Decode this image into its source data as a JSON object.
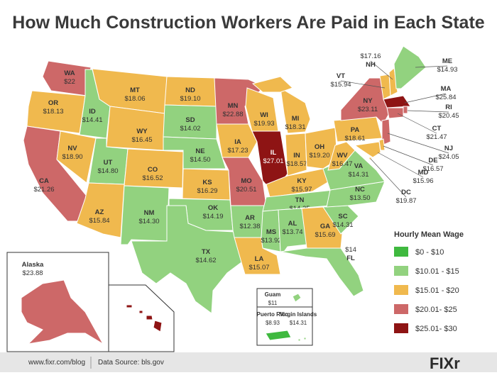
{
  "title": "How Much Construction Workers Are Paid in Each State",
  "legend": {
    "title": "Hourly Mean Wage",
    "items": [
      {
        "label": "$0 - $10",
        "color": "#3fb93f",
        "range": [
          0,
          10
        ]
      },
      {
        "label": "$10.01 - $15",
        "color": "#92d27f",
        "range": [
          10.01,
          15
        ]
      },
      {
        "label": "$15.01 - $20",
        "color": "#f0b94e",
        "range": [
          15.01,
          20
        ]
      },
      {
        "label": "$20.01- $25",
        "color": "#cd6868",
        "range": [
          20.01,
          25
        ]
      },
      {
        "label": "$25.01- $30",
        "color": "#8e1414",
        "range": [
          25.01,
          30
        ]
      }
    ]
  },
  "states": [
    {
      "name": "WA",
      "value": 22,
      "label": "$22"
    },
    {
      "name": "OR",
      "value": 18.13,
      "label": "$18.13"
    },
    {
      "name": "CA",
      "value": 21.26,
      "label": "$21.26"
    },
    {
      "name": "NV",
      "value": 18.9,
      "label": "$18.90"
    },
    {
      "name": "ID",
      "value": 14.41,
      "label": "$14.41"
    },
    {
      "name": "MT",
      "value": 18.06,
      "label": "$18.06"
    },
    {
      "name": "WY",
      "value": 16.45,
      "label": "$16.45"
    },
    {
      "name": "UT",
      "value": 14.8,
      "label": "$14.80"
    },
    {
      "name": "AZ",
      "value": 15.84,
      "label": "$15.84"
    },
    {
      "name": "CO",
      "value": 16.52,
      "label": "$16.52"
    },
    {
      "name": "NM",
      "value": 14.3,
      "label": "$14.30"
    },
    {
      "name": "ND",
      "value": 19.1,
      "label": "$19.10"
    },
    {
      "name": "SD",
      "value": 14.02,
      "label": "$14.02"
    },
    {
      "name": "NE",
      "value": 14.5,
      "label": "$14.50"
    },
    {
      "name": "KS",
      "value": 16.29,
      "label": "$16.29"
    },
    {
      "name": "OK",
      "value": 14.19,
      "label": "$14.19"
    },
    {
      "name": "TX",
      "value": 14.62,
      "label": "$14.62"
    },
    {
      "name": "MN",
      "value": 22.88,
      "label": "$22.88"
    },
    {
      "name": "IA",
      "value": 17.23,
      "label": "$17.23"
    },
    {
      "name": "MO",
      "value": 20.51,
      "label": "$20.51"
    },
    {
      "name": "AR",
      "value": 12.38,
      "label": "$12.38"
    },
    {
      "name": "LA",
      "value": 15.07,
      "label": "$15.07"
    },
    {
      "name": "WI",
      "value": 19.93,
      "label": "$19.93"
    },
    {
      "name": "IL",
      "value": 27.01,
      "label": "$27.01"
    },
    {
      "name": "MI",
      "value": 18.31,
      "label": "$18.31"
    },
    {
      "name": "IN",
      "value": 18.57,
      "label": "$18.57"
    },
    {
      "name": "OH",
      "value": 19.2,
      "label": "$19.20"
    },
    {
      "name": "KY",
      "value": 15.97,
      "label": "$15.97"
    },
    {
      "name": "TN",
      "value": 14.25,
      "label": "$14.25"
    },
    {
      "name": "MS",
      "value": 13.92,
      "label": "$13.92"
    },
    {
      "name": "AL",
      "value": 13.74,
      "label": "$13.74"
    },
    {
      "name": "GA",
      "value": 15.69,
      "label": "$15.69"
    },
    {
      "name": "FL",
      "value": 14,
      "label": "$14"
    },
    {
      "name": "SC",
      "value": 14.31,
      "label": "$14.31"
    },
    {
      "name": "NC",
      "value": 13.5,
      "label": "$13.50"
    },
    {
      "name": "VA",
      "value": 14.31,
      "label": "$14.31"
    },
    {
      "name": "WV",
      "value": 16.47,
      "label": "$16.47"
    },
    {
      "name": "PA",
      "value": 18.61,
      "label": "$18.61"
    },
    {
      "name": "NY",
      "value": 23.11,
      "label": "$23.11"
    },
    {
      "name": "VT",
      "value": 15.94,
      "label": "$15.94"
    },
    {
      "name": "NH",
      "value": 17.16,
      "label": "$17.16"
    },
    {
      "name": "ME",
      "value": 14.93,
      "label": "$14.93"
    },
    {
      "name": "MA",
      "value": 25.84,
      "label": "$25.84"
    },
    {
      "name": "RI",
      "value": 20.45,
      "label": "$20.45"
    },
    {
      "name": "CT",
      "value": 21.47,
      "label": "$21.47"
    },
    {
      "name": "NJ",
      "value": 24.05,
      "label": "$24.05"
    },
    {
      "name": "DE",
      "value": 16.57,
      "label": "$16.57"
    },
    {
      "name": "MD",
      "value": 15.96,
      "label": "$15.96"
    },
    {
      "name": "DC",
      "value": 19.87,
      "label": "$19.87"
    },
    {
      "name": "Alaska",
      "value": 23.88,
      "label": "$23.88"
    },
    {
      "name": "Hawaii",
      "value": 27.01,
      "label": "$27.01"
    },
    {
      "name": "Guam",
      "value": 11,
      "label": "$11"
    },
    {
      "name": "Puerto Rico",
      "value": 8.93,
      "label": "$8.93"
    },
    {
      "name": "Virgin Islands",
      "value": 14.31,
      "label": "$14.31"
    }
  ],
  "footer": {
    "website": "www.fixr.com/blog",
    "source": "Data Source: bls.gov",
    "logo": "FIXr"
  }
}
